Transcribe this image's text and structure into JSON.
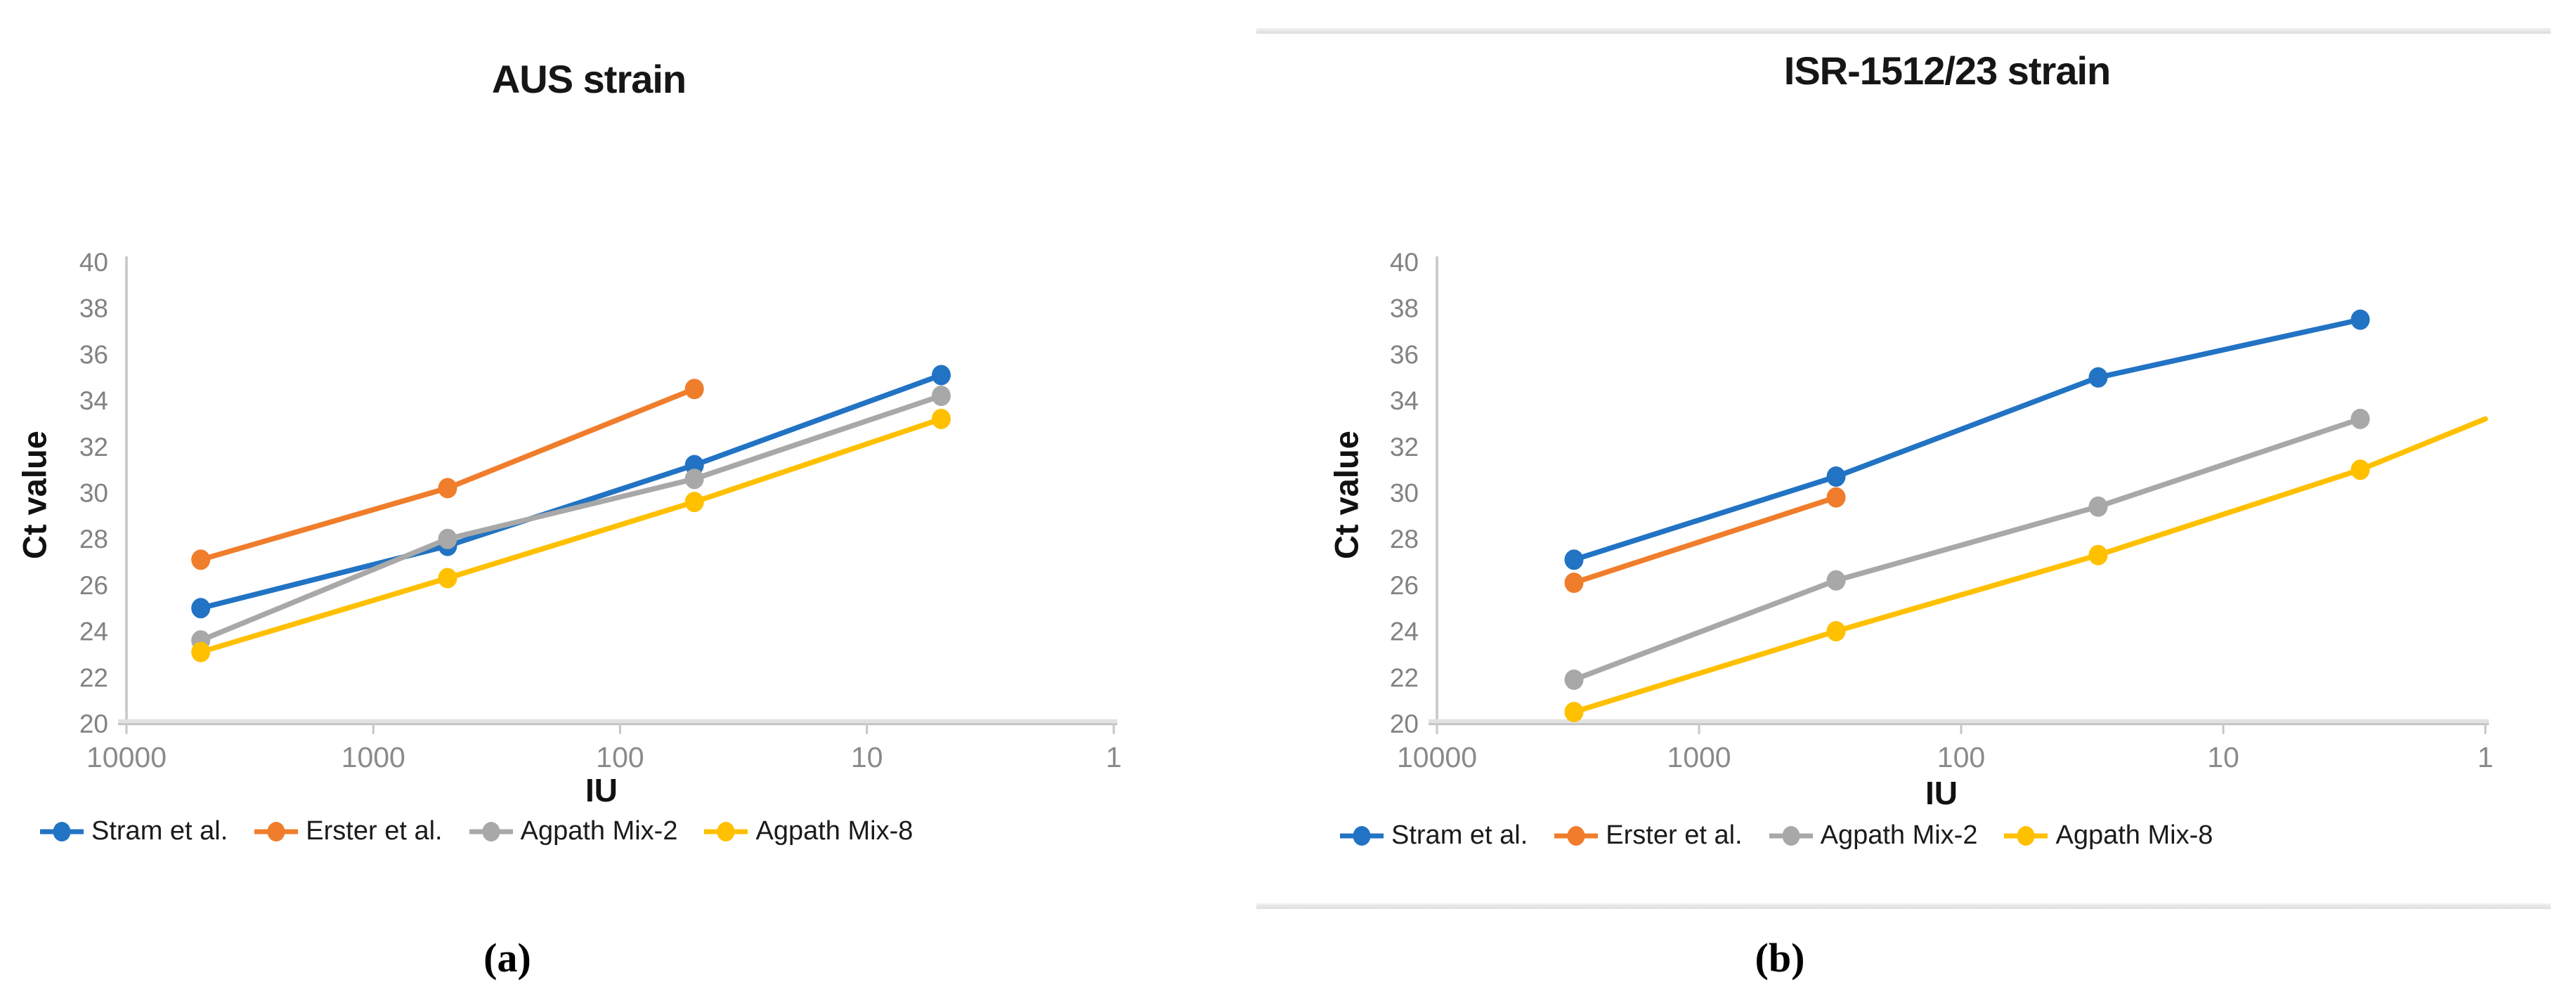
{
  "chart_data": [
    {
      "id": "a",
      "type": "line",
      "title": "AUS strain",
      "xlabel": "IU",
      "ylabel": "Ct value",
      "caption": "(a)",
      "x_scale": "log10-reversed",
      "xlim": [
        10000,
        1
      ],
      "x_ticks": [
        "10000",
        "1000",
        "100",
        "10",
        "1"
      ],
      "ylim": [
        20,
        40
      ],
      "y_tick_step": 2,
      "grid": false,
      "legend_position": "bottom",
      "series": [
        {
          "name": "Stram et al.",
          "color": "#2273C3",
          "x": [
            5000,
            500,
            50,
            5
          ],
          "y": [
            25.0,
            27.7,
            31.2,
            35.1
          ]
        },
        {
          "name": "Erster et al.",
          "color": "#F07D2B",
          "x": [
            5000,
            500,
            50
          ],
          "y": [
            27.1,
            30.2,
            34.5
          ]
        },
        {
          "name": "Agpath Mix-2",
          "color": "#A8A8A8",
          "x": [
            5000,
            500,
            50,
            5
          ],
          "y": [
            23.6,
            28.0,
            30.6,
            34.2
          ]
        },
        {
          "name": "Agpath Mix-8",
          "color": "#FFC000",
          "x": [
            5000,
            500,
            50,
            5
          ],
          "y": [
            23.1,
            26.3,
            29.6,
            33.2
          ]
        }
      ]
    },
    {
      "id": "b",
      "type": "line",
      "title": "ISR-1512/23 strain",
      "xlabel": "IU",
      "ylabel": "Ct value",
      "caption": "(b)",
      "x_scale": "log10-reversed",
      "xlim": [
        10000,
        1
      ],
      "x_ticks": [
        "10000",
        "1000",
        "100",
        "10",
        "1"
      ],
      "ylim": [
        20,
        40
      ],
      "y_tick_step": 2,
      "grid": false,
      "legend_position": "bottom",
      "series": [
        {
          "name": "Stram et al.",
          "color": "#2273C3",
          "x": [
            3000,
            300,
            30,
            3
          ],
          "y": [
            27.1,
            30.7,
            35.0,
            37.5
          ]
        },
        {
          "name": "Erster et al.",
          "color": "#F07D2B",
          "x": [
            3000,
            300
          ],
          "y": [
            26.1,
            29.8
          ]
        },
        {
          "name": "Agpath Mix-2",
          "color": "#A8A8A8",
          "x": [
            3000,
            300,
            30,
            3
          ],
          "y": [
            21.9,
            26.2,
            29.4,
            33.2
          ]
        },
        {
          "name": "Agpath Mix-8",
          "color": "#FFC000",
          "x": [
            3000,
            300,
            30,
            3
          ],
          "y": [
            20.5,
            24.0,
            27.3,
            31.0
          ],
          "line_extension": {
            "x": 1,
            "y": 33.2
          }
        }
      ]
    }
  ]
}
